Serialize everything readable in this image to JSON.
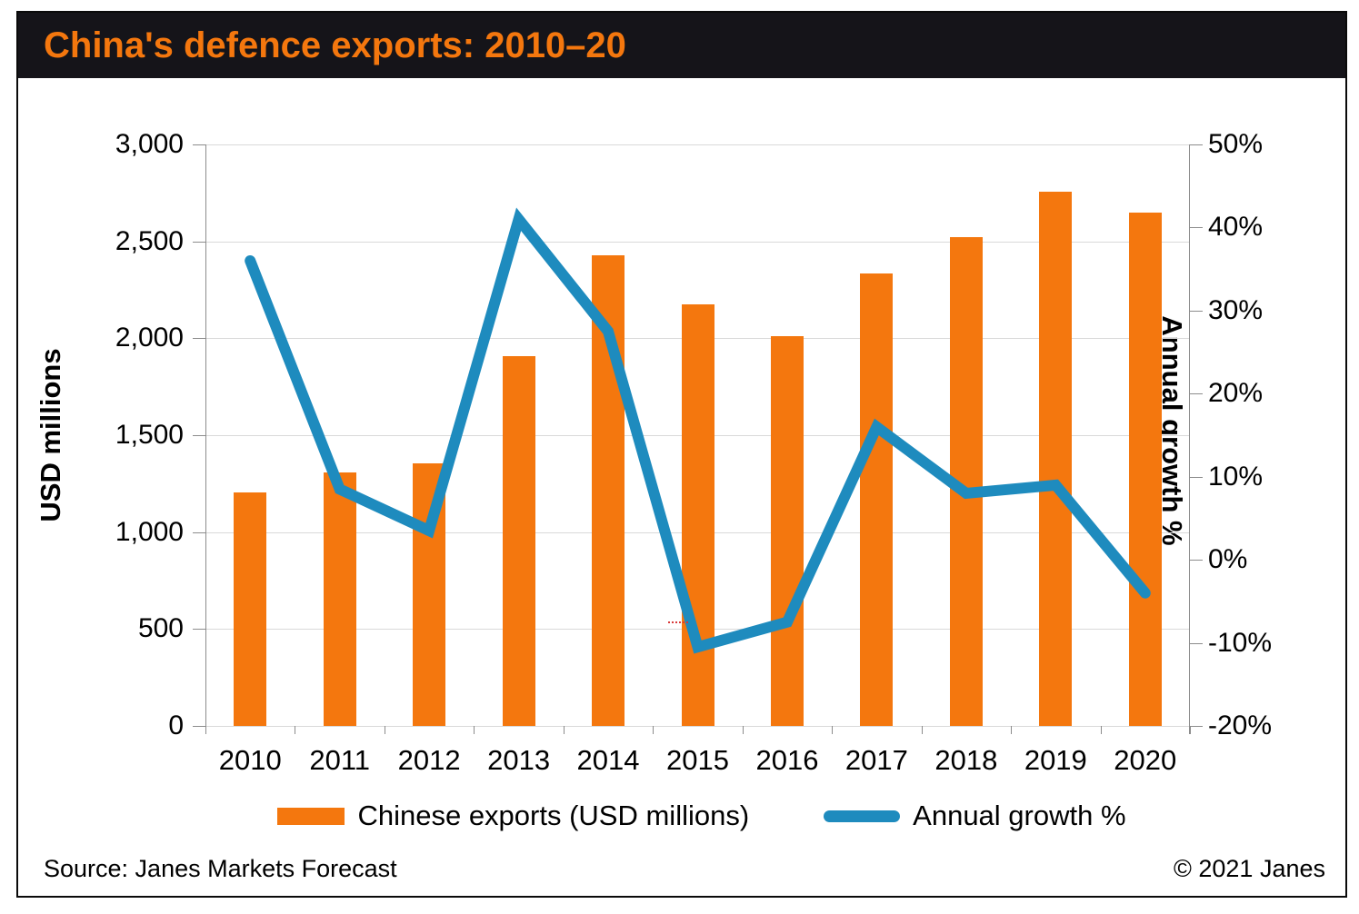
{
  "title": "China's defence exports: 2010–20",
  "footer": {
    "source": "Source: Janes Markets Forecast",
    "copyright": "© 2021 Janes"
  },
  "colors": {
    "title_bg": "#151419",
    "title_text": "#f4770e",
    "bar_orange": "#f4770e",
    "line_blue": "#1e8bbe",
    "gridline": "#d9d9d9",
    "axis_line": "#8c8c8c"
  },
  "chart_data": {
    "type": "bar",
    "subtype": "combo bar + line, dual axis",
    "title": "China's defence exports: 2010–20",
    "categories": [
      "2010",
      "2011",
      "2012",
      "2013",
      "2014",
      "2015",
      "2016",
      "2017",
      "2018",
      "2019",
      "2020"
    ],
    "series": [
      {
        "name": "Chinese exports (USD millions)",
        "type": "bar",
        "axis": "left",
        "color": "#f4770e",
        "values": [
          1205,
          1310,
          1355,
          1910,
          2430,
          2175,
          2010,
          2335,
          2520,
          2755,
          2650
        ]
      },
      {
        "name": "Annual growth %",
        "type": "line",
        "axis": "right",
        "color": "#1e8bbe",
        "values": [
          36,
          8.5,
          3.5,
          41,
          27.5,
          -10.5,
          -7.5,
          16,
          8,
          9,
          -4
        ]
      }
    ],
    "left_axis": {
      "label": "USD millions",
      "min": 0,
      "max": 3000,
      "step": 500,
      "tick_labels": [
        "3,000",
        "2,500",
        "2,000",
        "1,500",
        "1,000",
        "500",
        "0"
      ]
    },
    "right_axis": {
      "label": "Annual growth %",
      "min": -20,
      "max": 50,
      "step": 10,
      "tick_labels": [
        "50%",
        "40%",
        "30%",
        "20%",
        "10%",
        "0%",
        "-10%",
        "-20%"
      ]
    },
    "grid": "horizontal gridlines only",
    "legend_position": "bottom"
  }
}
